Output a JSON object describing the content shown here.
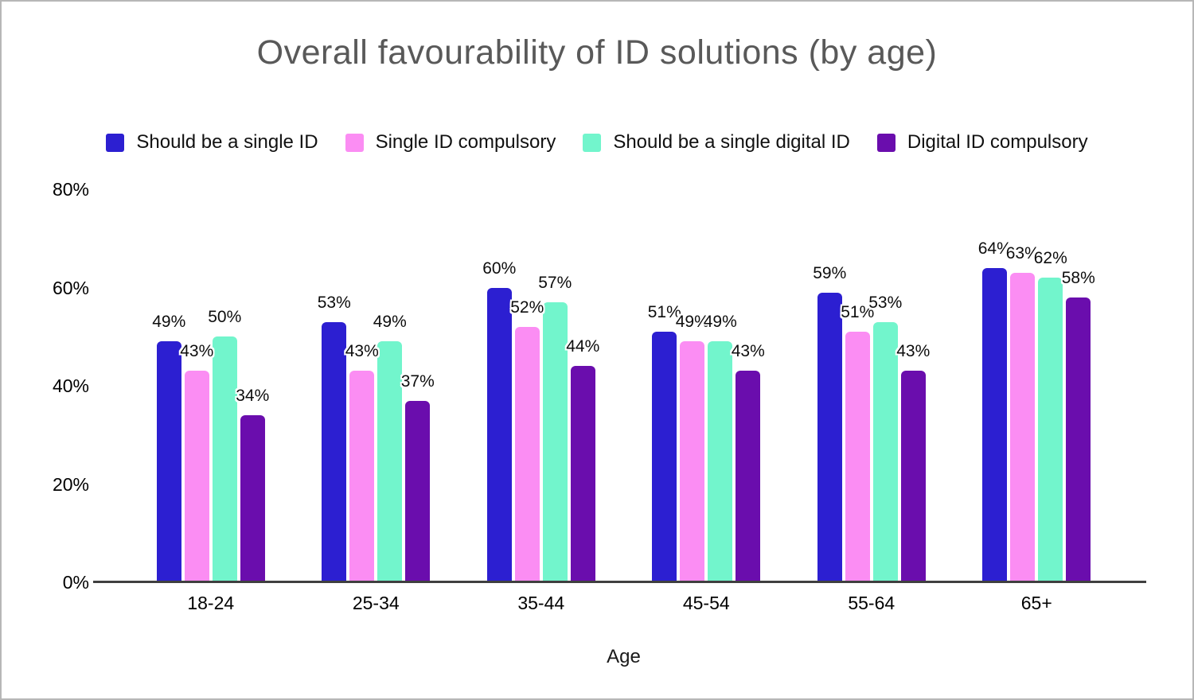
{
  "chart_data": {
    "type": "bar",
    "title": "Overall favourability of ID solutions (by age)",
    "xlabel": "Age",
    "ylabel": "",
    "categories": [
      "18-24",
      "25-34",
      "35-44",
      "45-54",
      "55-64",
      "65+"
    ],
    "series": [
      {
        "name": "Should be a single ID",
        "color": "#2c1fd1",
        "values": [
          49,
          53,
          60,
          51,
          59,
          64
        ]
      },
      {
        "name": "Single ID compulsory",
        "color": "#fb8df3",
        "values": [
          43,
          43,
          52,
          49,
          51,
          63
        ]
      },
      {
        "name": "Should be a single digital ID",
        "color": "#72f5cc",
        "values": [
          50,
          49,
          57,
          49,
          53,
          62
        ]
      },
      {
        "name": "Digital ID compulsory",
        "color": "#6a0dad",
        "values": [
          34,
          37,
          44,
          43,
          43,
          58
        ]
      }
    ],
    "ylim": [
      0,
      80
    ],
    "ytick_labels": [
      "0%",
      "20%",
      "40%",
      "60%",
      "80%"
    ],
    "value_suffix": "%",
    "legend_position": "top",
    "grid": false
  }
}
